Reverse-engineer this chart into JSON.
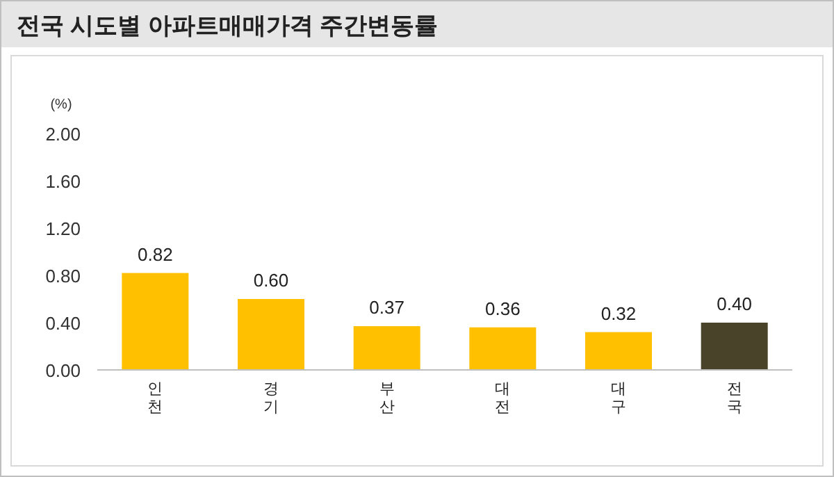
{
  "chart_data": {
    "type": "bar",
    "title": "전국 시도별 아파트매매가격 주간변동률",
    "ylabel": "(%)",
    "categories": [
      "인천",
      "경기",
      "부산",
      "대전",
      "대구",
      "전국"
    ],
    "values": [
      0.82,
      0.6,
      0.37,
      0.36,
      0.32,
      0.4
    ],
    "colors": [
      "#ffc000",
      "#ffc000",
      "#ffc000",
      "#ffc000",
      "#ffc000",
      "#494429"
    ],
    "ylim": [
      0,
      2
    ],
    "yticks": [
      {
        "value": 0,
        "label": "0.00"
      },
      {
        "value": 0.4,
        "label": "0.40"
      },
      {
        "value": 0.8,
        "label": "0.80"
      },
      {
        "value": 1.2,
        "label": "1.20"
      },
      {
        "value": 1.6,
        "label": "1.60"
      },
      {
        "value": 2,
        "label": "2.00"
      }
    ],
    "value_labels": [
      "0.82",
      "0.60",
      "0.37",
      "0.36",
      "0.32",
      "0.40"
    ]
  }
}
